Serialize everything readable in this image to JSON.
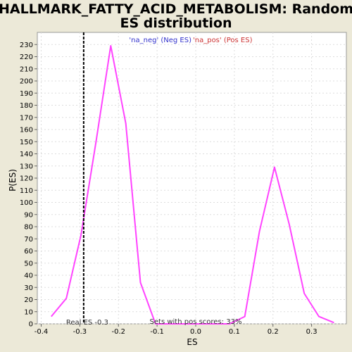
{
  "chart_data": {
    "type": "line",
    "title_line1": "HALLMARK_FATTY_ACID_METABOLISM: Random",
    "title_line2": "ES distribution",
    "xlabel": "ES",
    "ylabel": "P(ES)",
    "xlim": [
      -0.41,
      0.39
    ],
    "ylim": [
      0,
      240
    ],
    "xticks": [
      -0.4,
      -0.3,
      -0.2,
      -0.1,
      0.0,
      0.1,
      0.2,
      0.3
    ],
    "xtick_labels": [
      "-0.4",
      "-0.3",
      "-0.2",
      "-0.1",
      "0.0",
      "0.1",
      "0.2",
      "0.3"
    ],
    "yticks": [
      0,
      10,
      20,
      30,
      40,
      50,
      60,
      70,
      80,
      90,
      100,
      110,
      120,
      130,
      140,
      150,
      160,
      170,
      180,
      190,
      200,
      210,
      220,
      230
    ],
    "grid": true,
    "legend": {
      "placement": "top-center",
      "neg_label": "'na_neg' (Neg ES)",
      "pos_label": "'na_pos' (Pos ES)",
      "neg_color": "#3333cc",
      "pos_color": "#cc3333"
    },
    "series": [
      {
        "color": "#ff44ff",
        "x": [
          -0.374,
          -0.335,
          -0.297,
          -0.258,
          -0.22,
          -0.181,
          -0.143,
          -0.104,
          -0.066,
          -0.027,
          0.011,
          0.05,
          0.088,
          0.127,
          0.165,
          0.204,
          0.242,
          0.281,
          0.319,
          0.358
        ],
        "y": [
          6,
          21,
          73,
          150,
          229,
          165,
          34,
          0,
          0,
          0,
          0,
          0,
          0,
          6,
          76,
          129,
          82,
          25,
          6,
          1
        ]
      }
    ],
    "real_es": {
      "value": -0.29,
      "label": "Real ES -0.3",
      "color": "#000000"
    },
    "annotation": "Sets with pos scores: 33%"
  }
}
